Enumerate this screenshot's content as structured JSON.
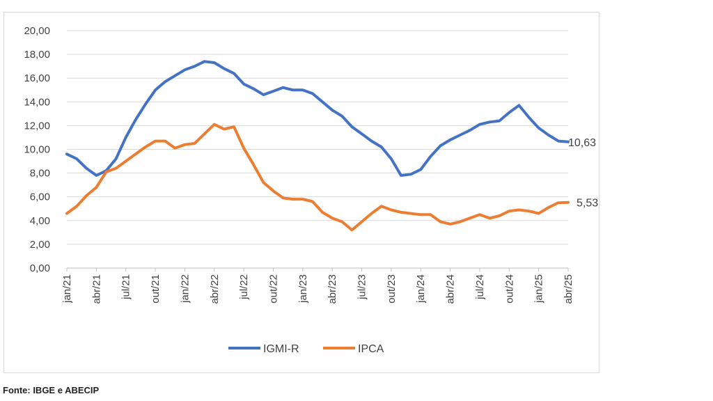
{
  "source_note": "Fonte: IBGE e ABECIP",
  "chart_data": {
    "type": "line",
    "title": "",
    "xlabel": "",
    "ylabel": "",
    "ylim": [
      0,
      20
    ],
    "y_ticks": [
      "0,00",
      "2,00",
      "4,00",
      "6,00",
      "8,00",
      "10,00",
      "12,00",
      "14,00",
      "16,00",
      "18,00",
      "20,00"
    ],
    "x_tick_labels": [
      "jan/21",
      "abr/21",
      "jul/21",
      "out/21",
      "jan/22",
      "abr/22",
      "jul/22",
      "out/22",
      "jan/23",
      "abr/23",
      "jul/23",
      "out/23",
      "jan/24",
      "abr/24",
      "jul/24",
      "out/24",
      "jan/25",
      "abr/25"
    ],
    "x_tick_every": 3,
    "grid": "horizontal",
    "legend_position": "bottom",
    "series": [
      {
        "name": "IGMI-R",
        "color": "#4472C4",
        "end_label": "10,63",
        "values": [
          9.6,
          9.2,
          8.4,
          7.8,
          8.2,
          9.2,
          11.0,
          12.5,
          13.8,
          15.0,
          15.7,
          16.2,
          16.7,
          17.0,
          17.4,
          17.3,
          16.8,
          16.4,
          15.5,
          15.1,
          14.6,
          14.9,
          15.2,
          15.0,
          15.0,
          14.7,
          14.0,
          13.3,
          12.8,
          11.9,
          11.3,
          10.7,
          10.2,
          9.2,
          7.8,
          7.9,
          8.3,
          9.4,
          10.3,
          10.8,
          11.2,
          11.6,
          12.1,
          12.3,
          12.4,
          13.1,
          13.7,
          12.7,
          11.8,
          11.2,
          10.7,
          10.63
        ]
      },
      {
        "name": "IPCA",
        "color": "#ED7D31",
        "end_label": "5,53",
        "values": [
          4.6,
          5.2,
          6.1,
          6.8,
          8.1,
          8.4,
          9.0,
          9.6,
          10.2,
          10.7,
          10.7,
          10.1,
          10.4,
          10.5,
          11.3,
          12.1,
          11.7,
          11.9,
          10.1,
          8.7,
          7.2,
          6.5,
          5.9,
          5.8,
          5.8,
          5.6,
          4.7,
          4.2,
          3.9,
          3.2,
          3.9,
          4.6,
          5.2,
          4.9,
          4.7,
          4.6,
          4.5,
          4.5,
          3.9,
          3.7,
          3.9,
          4.2,
          4.5,
          4.2,
          4.4,
          4.8,
          4.9,
          4.8,
          4.6,
          5.1,
          5.5,
          5.53
        ]
      }
    ]
  }
}
